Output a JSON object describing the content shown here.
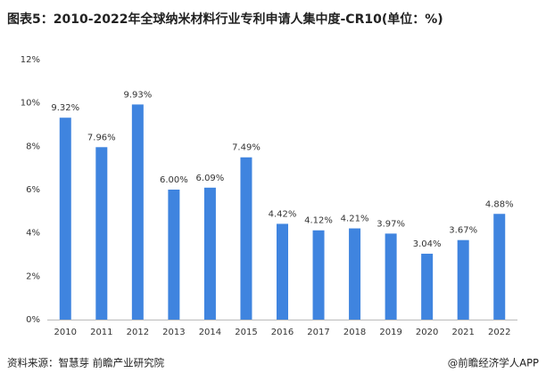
{
  "chart_data": {
    "type": "bar",
    "title": "图表5：2010-2022年全球纳米材料行业专利申请人集中度-CR10(单位：%)",
    "categories": [
      "2010",
      "2011",
      "2012",
      "2013",
      "2014",
      "2015",
      "2016",
      "2017",
      "2018",
      "2019",
      "2020",
      "2021",
      "2022"
    ],
    "values": [
      9.32,
      7.96,
      9.93,
      6.0,
      6.09,
      7.49,
      4.42,
      4.12,
      4.21,
      3.97,
      3.04,
      3.67,
      4.88
    ],
    "value_labels": [
      "9.32%",
      "7.96%",
      "9.93%",
      "6.00%",
      "6.09%",
      "7.49%",
      "4.42%",
      "4.12%",
      "4.21%",
      "3.97%",
      "3.04%",
      "3.67%",
      "4.88%"
    ],
    "color": "#3f84df",
    "ylim": [
      0,
      12
    ],
    "yticks": [
      {
        "value": 0,
        "label": "0%"
      },
      {
        "value": 2,
        "label": "2%"
      },
      {
        "value": 4,
        "label": "4%"
      },
      {
        "value": 6,
        "label": "6%"
      },
      {
        "value": 8,
        "label": "8%"
      },
      {
        "value": 10,
        "label": "10%"
      },
      {
        "value": 12,
        "label": "12%"
      }
    ],
    "grid": false,
    "source": "资料来源：智慧芽 前瞻产业研究院",
    "credit": "@前瞻经济学人APP"
  }
}
